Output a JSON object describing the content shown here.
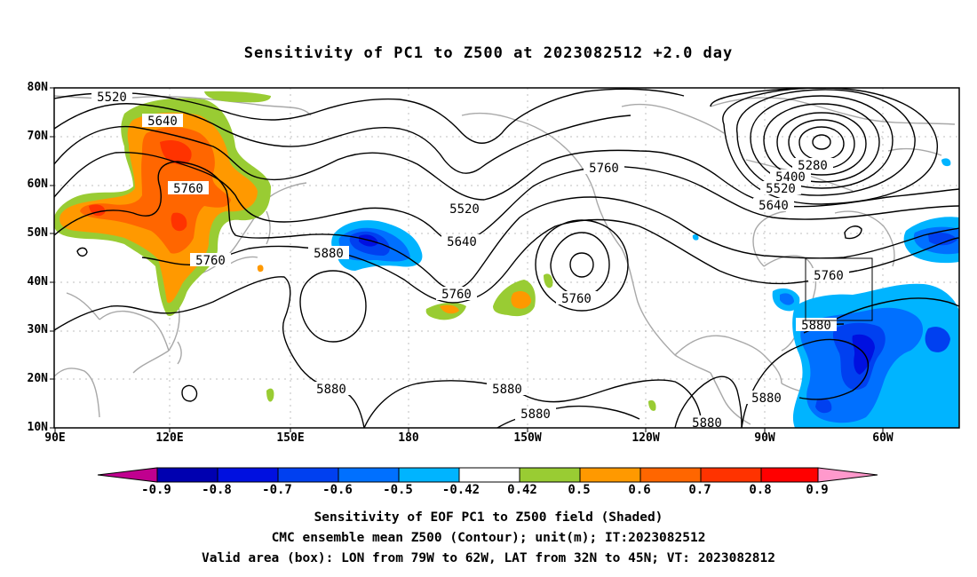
{
  "title": "Sensitivity of PC1 to Z500 at 2023082512 +2.0 day",
  "map": {
    "lat_labels": [
      "80N",
      "70N",
      "60N",
      "50N",
      "40N",
      "30N",
      "20N",
      "10N"
    ],
    "lon_labels": [
      "90E",
      "120E",
      "150E",
      "180",
      "150W",
      "120W",
      "90W",
      "60W"
    ],
    "contour_labels": [
      "5520",
      "5640",
      "5760",
      "5760",
      "5880",
      "5520",
      "5640",
      "5760",
      "5760",
      "5760",
      "5280",
      "5400",
      "5520",
      "5640",
      "5760",
      "5880",
      "5880",
      "5880",
      "5880",
      "5880",
      "5880"
    ],
    "valid_box_note": "LON 79W-62W, LAT 32N-45N"
  },
  "colorbar": {
    "labels": [
      "-0.9",
      "-0.8",
      "-0.7",
      "-0.6",
      "-0.5",
      "-0.42",
      "0.42",
      "0.5",
      "0.6",
      "0.7",
      "0.8",
      "0.9"
    ],
    "colors": [
      "#c0008f",
      "#0000b0",
      "#0010e0",
      "#0040f0",
      "#0070ff",
      "#00b4ff",
      "#ffffff",
      "#99cc33",
      "#ff9900",
      "#ff6600",
      "#ff3300",
      "#ff0000",
      "#ff99cc"
    ]
  },
  "captions": {
    "line1": "Sensitivity of EOF PC1 to Z500 field (Shaded)",
    "line2": "CMC ensemble mean Z500 (Contour); unit(m); IT:2023082512",
    "line3": "Valid area (box): LON from 79W to 62W, LAT from 32N to 45N; VT: 2023082812"
  }
}
